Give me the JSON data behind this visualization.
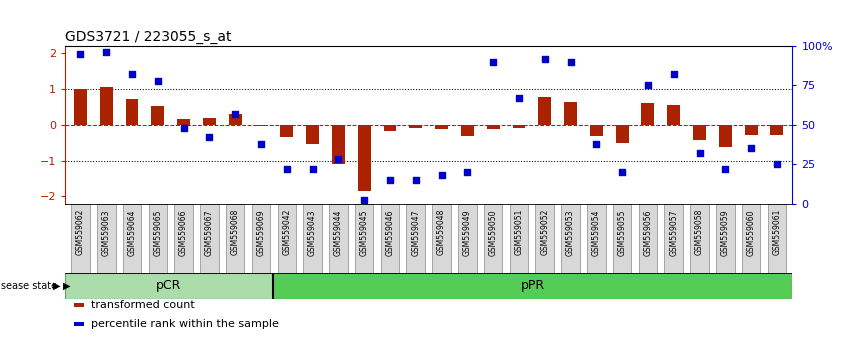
{
  "title": "GDS3721 / 223055_s_at",
  "samples": [
    "GSM559062",
    "GSM559063",
    "GSM559064",
    "GSM559065",
    "GSM559066",
    "GSM559067",
    "GSM559068",
    "GSM559069",
    "GSM559042",
    "GSM559043",
    "GSM559044",
    "GSM559045",
    "GSM559046",
    "GSM559047",
    "GSM559048",
    "GSM559049",
    "GSM559050",
    "GSM559051",
    "GSM559052",
    "GSM559053",
    "GSM559054",
    "GSM559055",
    "GSM559056",
    "GSM559057",
    "GSM559058",
    "GSM559059",
    "GSM559060",
    "GSM559061"
  ],
  "transformed_count": [
    1.0,
    1.05,
    0.72,
    0.52,
    0.15,
    0.18,
    0.3,
    -0.02,
    -0.35,
    -0.55,
    -1.1,
    -1.85,
    -0.18,
    -0.08,
    -0.12,
    -0.3,
    -0.12,
    -0.08,
    0.78,
    0.65,
    -0.32,
    -0.5,
    0.62,
    0.55,
    -0.42,
    -0.62,
    -0.28,
    -0.28
  ],
  "percentile_rank": [
    95,
    96,
    82,
    78,
    48,
    42,
    57,
    38,
    22,
    22,
    28,
    2,
    15,
    15,
    18,
    20,
    90,
    67,
    92,
    90,
    38,
    20,
    75,
    82,
    32,
    22,
    35,
    25
  ],
  "bar_color": "#aa2200",
  "dot_color": "#0000cc",
  "pcr_count": 8,
  "pcr_color": "#aaddaa",
  "ppr_color": "#55cc55",
  "ylim": [
    -2.2,
    2.2
  ],
  "y2lim": [
    0,
    100
  ],
  "yticks": [
    -2,
    -1,
    0,
    1,
    2
  ],
  "y2ticks": [
    0,
    25,
    50,
    75,
    100
  ],
  "dotline_y": [
    -1.0,
    1.0
  ],
  "title_fontsize": 10,
  "bar_width": 0.5
}
